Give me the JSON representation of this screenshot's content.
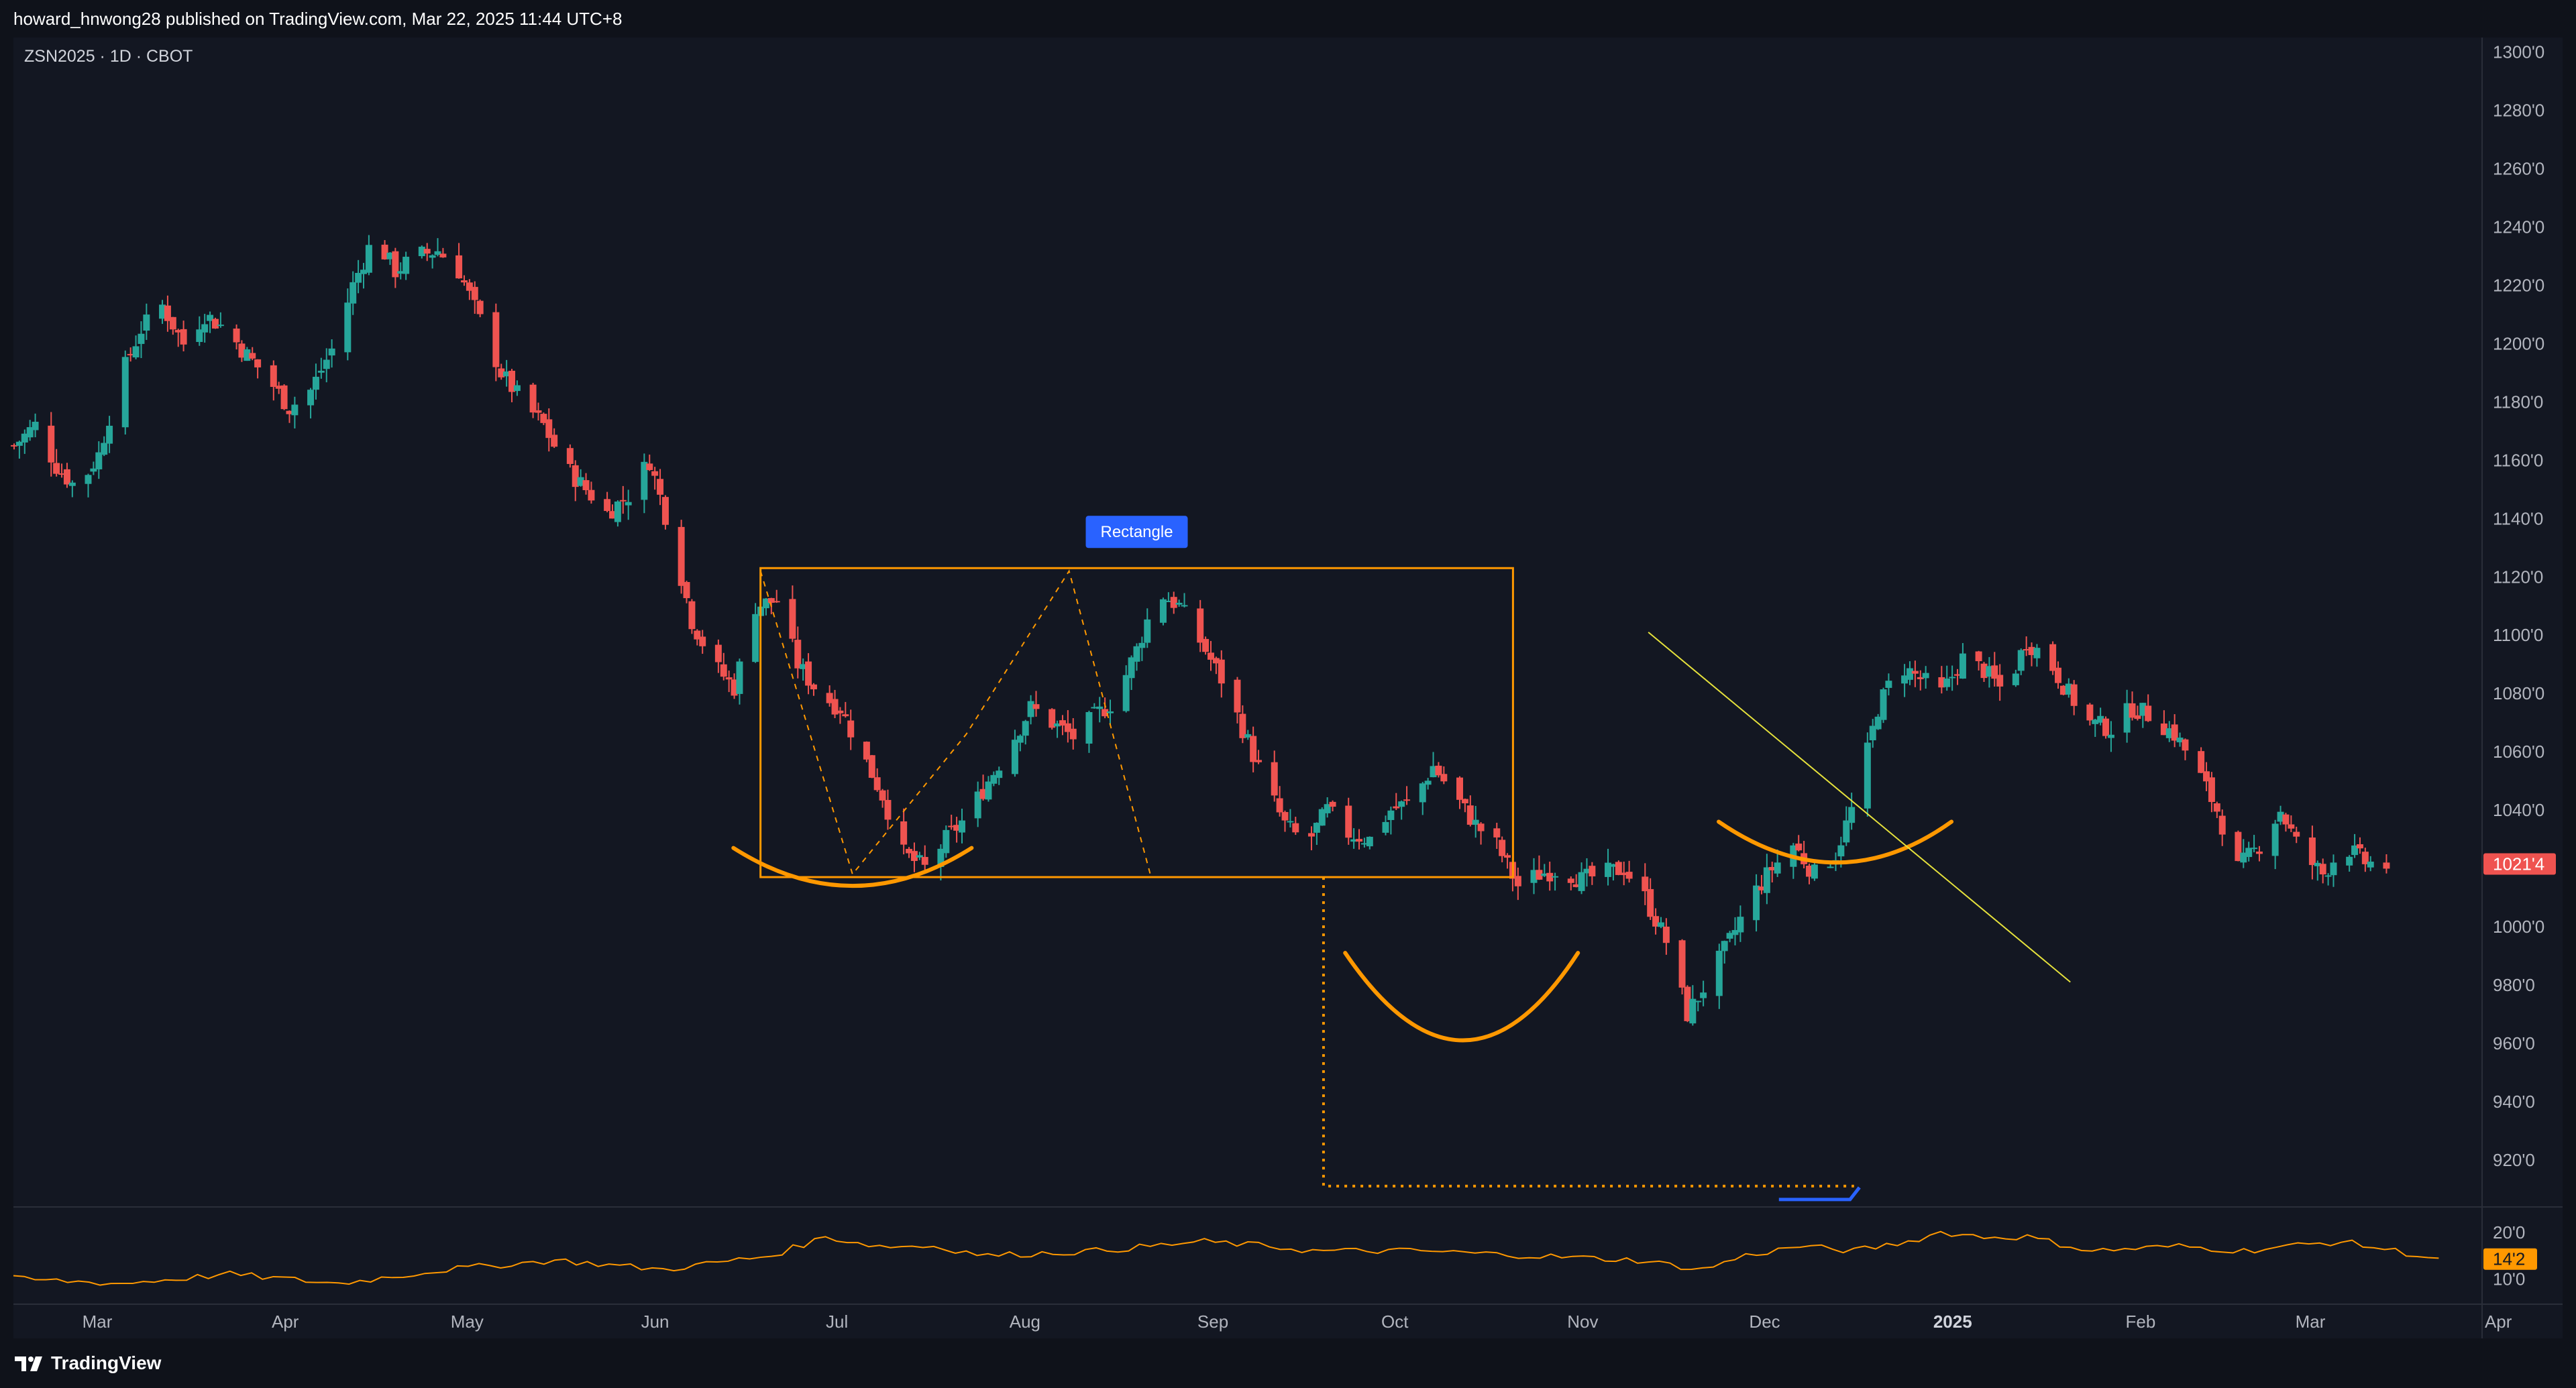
{
  "header": {
    "published_by": "howard_hnwong28 published on TradingView.com, Mar 22, 2025 11:44 UTC+8"
  },
  "symbol_line": "ZSN2025 · 1D · CBOT",
  "brand": {
    "name": "TradingView"
  },
  "colors": {
    "up": "#26a69a",
    "down": "#ef5350",
    "orange": "#ff9800",
    "trendline": "#e6e23c",
    "label_blue": "#2962ff"
  },
  "chart_data": [
    {
      "type": "candlestick",
      "title": "",
      "x_axis": {
        "labels": [
          "Mar",
          "Apr",
          "May",
          "Jun",
          "Jul",
          "Aug",
          "Sep",
          "Oct",
          "Nov",
          "Dec",
          "2025",
          "Feb",
          "Mar",
          "Apr"
        ]
      },
      "y_axis": {
        "ylim": [
          905,
          1305
        ],
        "ticks": [
          "1300'0",
          "1280'0",
          "1260'0",
          "1240'0",
          "1220'0",
          "1200'0",
          "1180'0",
          "1160'0",
          "1140'0",
          "1120'0",
          "1100'0",
          "1080'0",
          "1060'0",
          "1040'0",
          "1020'0",
          "1000'0",
          "980'0",
          "960'0",
          "940'0",
          "920'0"
        ],
        "last_price": "1021'4"
      },
      "close_path": [
        [
          0,
          1165
        ],
        [
          4,
          1172
        ],
        [
          8,
          1158
        ],
        [
          12,
          1150
        ],
        [
          16,
          1162
        ],
        [
          20,
          1188
        ],
        [
          24,
          1205
        ],
        [
          28,
          1213
        ],
        [
          32,
          1200
        ],
        [
          36,
          1210
        ],
        [
          40,
          1205
        ],
        [
          44,
          1196
        ],
        [
          48,
          1188
        ],
        [
          52,
          1178
        ],
        [
          56,
          1184
        ],
        [
          60,
          1198
        ],
        [
          64,
          1220
        ],
        [
          68,
          1237
        ],
        [
          72,
          1225
        ],
        [
          76,
          1230
        ],
        [
          80,
          1232
        ],
        [
          84,
          1225
        ],
        [
          88,
          1208
        ],
        [
          92,
          1190
        ],
        [
          96,
          1180
        ],
        [
          100,
          1172
        ],
        [
          104,
          1158
        ],
        [
          108,
          1150
        ],
        [
          112,
          1142
        ],
        [
          116,
          1148
        ],
        [
          120,
          1160
        ],
        [
          124,
          1135
        ],
        [
          128,
          1105
        ],
        [
          132,
          1090
        ],
        [
          136,
          1082
        ],
        [
          140,
          1110
        ],
        [
          144,
          1112
        ],
        [
          148,
          1090
        ],
        [
          152,
          1080
        ],
        [
          156,
          1075
        ],
        [
          160,
          1060
        ],
        [
          164,
          1045
        ],
        [
          168,
          1025
        ],
        [
          172,
          1020
        ],
        [
          176,
          1030
        ],
        [
          180,
          1038
        ],
        [
          184,
          1050
        ],
        [
          188,
          1062
        ],
        [
          192,
          1075
        ],
        [
          196,
          1070
        ],
        [
          200,
          1065
        ],
        [
          204,
          1072
        ],
        [
          208,
          1078
        ],
        [
          212,
          1095
        ],
        [
          216,
          1115
        ],
        [
          220,
          1110
        ],
        [
          224,
          1098
        ],
        [
          228,
          1085
        ],
        [
          232,
          1068
        ],
        [
          236,
          1050
        ],
        [
          240,
          1035
        ],
        [
          244,
          1028
        ],
        [
          248,
          1040
        ],
        [
          252,
          1032
        ],
        [
          256,
          1030
        ],
        [
          260,
          1040
        ],
        [
          264,
          1043
        ],
        [
          268,
          1055
        ],
        [
          272,
          1045
        ],
        [
          276,
          1035
        ],
        [
          280,
          1028
        ],
        [
          284,
          1014
        ],
        [
          288,
          1018
        ],
        [
          292,
          1020
        ],
        [
          296,
          1016
        ],
        [
          300,
          1018
        ],
        [
          304,
          1020
        ],
        [
          308,
          1010
        ],
        [
          312,
          995
        ],
        [
          316,
          970
        ],
        [
          320,
          982
        ],
        [
          324,
          995
        ],
        [
          328,
          1010
        ],
        [
          332,
          1020
        ],
        [
          336,
          1028
        ],
        [
          340,
          1018
        ],
        [
          344,
          1025
        ],
        [
          348,
          1045
        ],
        [
          352,
          1075
        ],
        [
          356,
          1090
        ],
        [
          360,
          1085
        ],
        [
          364,
          1080
        ],
        [
          368,
          1092
        ],
        [
          372,
          1088
        ],
        [
          376,
          1080
        ],
        [
          380,
          1098
        ],
        [
          384,
          1092
        ],
        [
          388,
          1080
        ],
        [
          392,
          1070
        ],
        [
          396,
          1068
        ],
        [
          400,
          1075
        ],
        [
          404,
          1072
        ],
        [
          408,
          1066
        ],
        [
          412,
          1055
        ],
        [
          416,
          1040
        ],
        [
          420,
          1020
        ],
        [
          424,
          1028
        ],
        [
          428,
          1040
        ],
        [
          432,
          1025
        ],
        [
          436,
          1018
        ],
        [
          440,
          1028
        ],
        [
          444,
          1022
        ],
        [
          448,
          1021
        ]
      ],
      "volatility_panel": {
        "ticks": [
          "20'0",
          "10'0"
        ],
        "last_value": "14'2",
        "ylim": [
          5,
          25
        ],
        "path": [
          [
            0,
            10
          ],
          [
            20,
            9
          ],
          [
            40,
            11
          ],
          [
            60,
            9
          ],
          [
            80,
            12
          ],
          [
            100,
            14
          ],
          [
            120,
            12
          ],
          [
            140,
            15
          ],
          [
            150,
            19
          ],
          [
            160,
            17
          ],
          [
            170,
            17
          ],
          [
            180,
            15
          ],
          [
            200,
            16
          ],
          [
            220,
            18
          ],
          [
            232,
            17
          ],
          [
            240,
            16
          ],
          [
            260,
            16
          ],
          [
            280,
            15
          ],
          [
            300,
            14
          ],
          [
            312,
            12
          ],
          [
            320,
            15
          ],
          [
            330,
            17
          ],
          [
            340,
            16
          ],
          [
            350,
            18
          ],
          [
            356,
            20
          ],
          [
            364,
            19
          ],
          [
            372,
            19
          ],
          [
            384,
            16
          ],
          [
            400,
            17
          ],
          [
            412,
            16
          ],
          [
            420,
            17
          ],
          [
            430,
            18
          ],
          [
            440,
            16
          ],
          [
            448,
            14.2
          ]
        ]
      },
      "annotations": [
        {
          "kind": "rectangle",
          "label": "Rectangle",
          "x0": 138,
          "x1": 277,
          "y0": 1017,
          "y1": 1123
        },
        {
          "kind": "arc",
          "x0": 133,
          "x1": 177,
          "xc": 155,
          "ytop": 1027,
          "ybottom": 1014
        },
        {
          "kind": "arc",
          "x0": 246,
          "x1": 289,
          "xc": 268,
          "ytop": 991,
          "ybottom": 961
        },
        {
          "kind": "arc",
          "x0": 315,
          "x1": 358,
          "xc": 337,
          "ytop": 1036,
          "ybottom": 1022
        },
        {
          "kind": "trendline",
          "x0": 302,
          "y0": 1101,
          "x1": 375,
          "y1": 981
        },
        {
          "kind": "dashed-zigzag",
          "points": [
            [
              138,
              1122
            ],
            [
              155,
              1018
            ],
            [
              176,
              1066
            ],
            [
              195,
              1122
            ],
            [
              210,
              1018
            ]
          ]
        },
        {
          "kind": "target-line",
          "x": 242,
          "y_from": 1017,
          "y_to": 911,
          "x_to": 340
        }
      ]
    }
  ]
}
